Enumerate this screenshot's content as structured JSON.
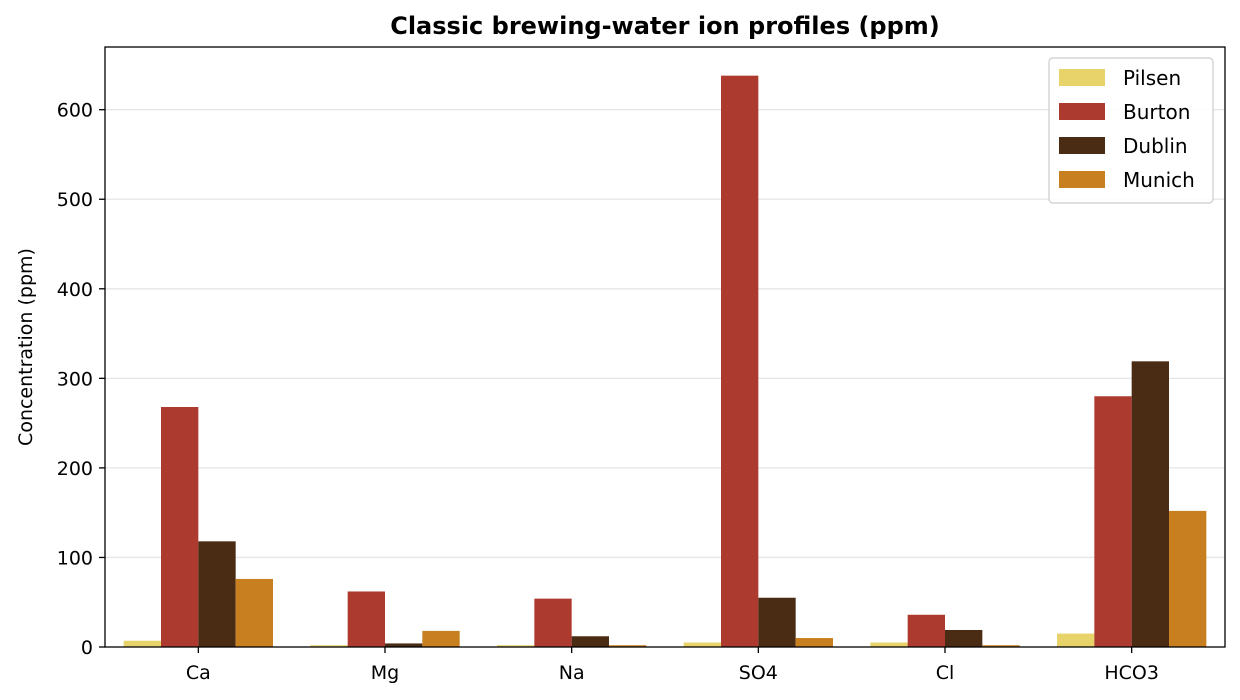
{
  "chart_data": {
    "type": "bar",
    "title": "Classic brewing-water ion profiles (ppm)",
    "xlabel": "",
    "ylabel": "Concentration (ppm)",
    "categories": [
      "Ca",
      "Mg",
      "Na",
      "SO4",
      "Cl",
      "HCO3"
    ],
    "ylim": [
      0,
      670
    ],
    "yticks": [
      0,
      100,
      200,
      300,
      400,
      500,
      600
    ],
    "grid": "y",
    "legend_position": "top-right",
    "series": [
      {
        "name": "Pilsen",
        "color": "#e8d36a",
        "values": [
          7,
          2,
          2,
          5,
          5,
          15
        ]
      },
      {
        "name": "Burton",
        "color": "#ad3a2f",
        "values": [
          268,
          62,
          54,
          638,
          36,
          280
        ]
      },
      {
        "name": "Dublin",
        "color": "#4a2c14",
        "values": [
          118,
          4,
          12,
          55,
          19,
          319
        ]
      },
      {
        "name": "Munich",
        "color": "#c87f20",
        "values": [
          76,
          18,
          2,
          10,
          2,
          152
        ]
      }
    ]
  }
}
